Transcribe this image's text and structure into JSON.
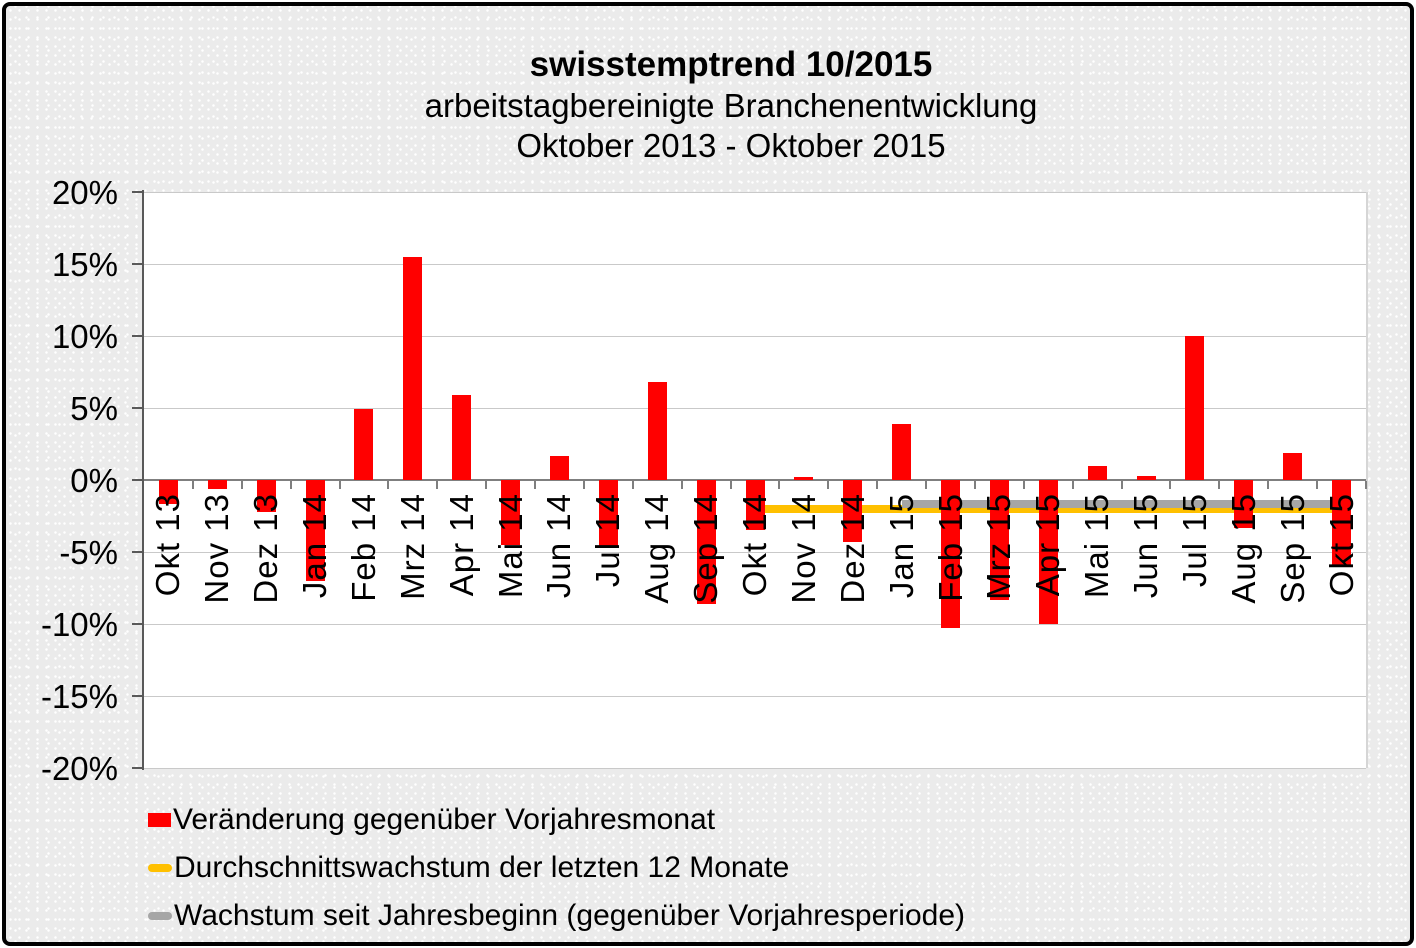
{
  "title": "swisstemptrend 10/2015",
  "subtitle1": "arbeitstagbereinigte Branchenentwicklung",
  "subtitle2": "Oktober 2013 - Oktober 2015",
  "chart_data": {
    "type": "bar",
    "title": "swisstemptrend 10/2015",
    "subtitle": "arbeitstagbereinigte Branchenentwicklung Oktober 2013 - Oktober 2015",
    "categories": [
      "Okt 13",
      "Nov 13",
      "Dez 13",
      "Jan 14",
      "Feb 14",
      "Mrz 14",
      "Apr 14",
      "Mai 14",
      "Jun 14",
      "Jul 14",
      "Aug 14",
      "Sep 14",
      "Okt 14",
      "Nov 14",
      "Dez 14",
      "Jan 15",
      "Feb 15",
      "Mrz 15",
      "Apr 15",
      "Mai 15",
      "Jun 15",
      "Jul 15",
      "Aug 15",
      "Sep 15",
      "Okt 15"
    ],
    "series": [
      {
        "name": "Veränderung gegenüber Vorjahresmonat",
        "type": "bar",
        "color": "#ff0000",
        "values": [
          -1.7,
          -0.6,
          -2.2,
          -7.0,
          4.9,
          15.5,
          5.9,
          -4.5,
          1.7,
          -4.6,
          6.8,
          -8.6,
          -3.5,
          0.2,
          -4.3,
          3.9,
          -10.3,
          -8.3,
          -10.0,
          1.0,
          0.3,
          10.0,
          -3.3,
          1.9,
          -6.0
        ]
      },
      {
        "name": "Durchschnittswachstum der letzten 12 Monate",
        "type": "line",
        "color": "#ffc000",
        "value": -2.0,
        "start_index": 12,
        "end_index": 24
      },
      {
        "name": "Wachstum seit Jahresbeginn (gegenüber Vorjahresperiode)",
        "type": "line",
        "color": "#a6a6a6",
        "value": -1.7,
        "start_index": 15,
        "end_index": 24
      }
    ],
    "ylim": [
      -20,
      20
    ],
    "ytick_step": 5,
    "ytick_labels": [
      "20%",
      "15%",
      "10%",
      "5%",
      "0%",
      "-5%",
      "-10%",
      "-15%",
      "-20%"
    ],
    "grid": true,
    "legend_position": "bottom-left"
  }
}
